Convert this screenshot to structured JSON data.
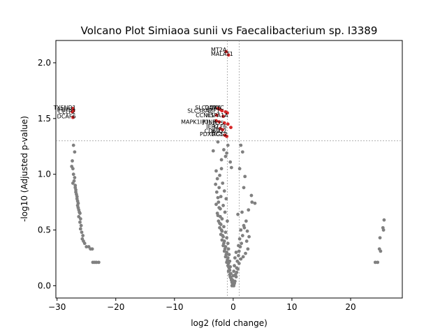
{
  "chart_data": {
    "type": "scatter",
    "title": "Volcano Plot Simiaoa sunii vs Faecalibacterium sp. I3389",
    "xlabel": "log2 (fold change)",
    "ylabel": "-log10 (Adjusted p-value)",
    "xlim": [
      -30.2,
      28.8
    ],
    "ylim": [
      -0.11,
      2.2
    ],
    "xticks": [
      -30,
      -20,
      -10,
      0,
      10,
      20
    ],
    "yticks": [
      0.0,
      0.5,
      1.0,
      1.5,
      2.0
    ],
    "grid": false,
    "threshold_lines": {
      "x": [
        -1,
        1
      ],
      "y": [
        1.3
      ]
    },
    "colors": {
      "significant": "#d62728",
      "not_significant": "#808080",
      "threshold_line": "#808080"
    },
    "significant_points": [
      {
        "gene": "MT2A",
        "x": -1.2,
        "y": 2.1
      },
      {
        "gene": "MALAT1",
        "x": -0.8,
        "y": 2.07
      },
      {
        "gene": "TYSND1",
        "x": -27.3,
        "y": 1.59
      },
      {
        "gene": "PTMS",
        "x": -27.2,
        "y": 1.57
      },
      {
        "gene": "CELF2",
        "x": -27.4,
        "y": 1.56
      },
      {
        "gene": "DCAF6",
        "x": -27.3,
        "y": 1.51
      },
      {
        "gene": "SLC2A1",
        "x": -2.6,
        "y": 1.59
      },
      {
        "gene": "DDX5",
        "x": -2.2,
        "y": 1.58
      },
      {
        "gene": "MYC",
        "x": -1.9,
        "y": 1.57
      },
      {
        "gene": "SLC38A2",
        "x": -1.3,
        "y": 1.56
      },
      {
        "gene": "EIF1",
        "x": -1.0,
        "y": 1.55
      },
      {
        "gene": "CCNL1",
        "x": -2.8,
        "y": 1.53
      },
      {
        "gene": "HSPA1A",
        "x": -1.7,
        "y": 1.52
      },
      {
        "gene": "MAPK1IP1L",
        "x": -2.9,
        "y": 1.48
      },
      {
        "gene": "JUNB",
        "x": -2.4,
        "y": 1.47
      },
      {
        "gene": "FOS",
        "x": -1.5,
        "y": 1.46
      },
      {
        "gene": "IER2",
        "x": -0.9,
        "y": 1.45
      },
      {
        "gene": "KLF6",
        "x": -0.4,
        "y": 1.42
      },
      {
        "gene": "CD69",
        "x": -2.2,
        "y": 1.41
      },
      {
        "gene": "BTG2",
        "x": -1.8,
        "y": 1.4
      },
      {
        "gene": "PDXDC1",
        "x": -1.4,
        "y": 1.35
      },
      {
        "gene": "RGS2",
        "x": -1.1,
        "y": 1.34
      }
    ],
    "labels": [
      {
        "text": "MT2A",
        "x": -3.8,
        "y": 2.12
      },
      {
        "text": "MALAT1",
        "x": -3.8,
        "y": 2.08
      },
      {
        "text": "TYSND1",
        "x": -30.6,
        "y": 1.6
      },
      {
        "text": "PTMS",
        "x": -30.0,
        "y": 1.58
      },
      {
        "text": "CELF2",
        "x": -29.8,
        "y": 1.56
      },
      {
        "text": "DCAF6",
        "x": -30.0,
        "y": 1.52
      },
      {
        "text": "SLC2A1",
        "x": -6.5,
        "y": 1.6
      },
      {
        "text": "DDX5",
        "x": -4.8,
        "y": 1.6
      },
      {
        "text": "MYC",
        "x": -3.6,
        "y": 1.6
      },
      {
        "text": "SLC38A2",
        "x": -7.8,
        "y": 1.57
      },
      {
        "text": "EIF1",
        "x": -4.3,
        "y": 1.57
      },
      {
        "text": "CCNL1",
        "x": -6.4,
        "y": 1.53
      },
      {
        "text": "HSPA1A",
        "x": -4.6,
        "y": 1.53
      },
      {
        "text": "MAPK1IP1L",
        "x": -8.9,
        "y": 1.47
      },
      {
        "text": "JUNB",
        "x": -5.2,
        "y": 1.47
      },
      {
        "text": "FOS",
        "x": -3.5,
        "y": 1.46
      },
      {
        "text": "IER2",
        "x": -4.6,
        "y": 1.43
      },
      {
        "text": "KLF6",
        "x": -3.4,
        "y": 1.43
      },
      {
        "text": "CD69",
        "x": -4.9,
        "y": 1.39
      },
      {
        "text": "BTG2",
        "x": -3.7,
        "y": 1.39
      },
      {
        "text": "PDXDC1",
        "x": -5.7,
        "y": 1.36
      },
      {
        "text": "RGS2",
        "x": -3.6,
        "y": 1.36
      }
    ],
    "nonsignificant_points": [
      [
        -27.2,
        1.26
      ],
      [
        -27.0,
        1.2
      ],
      [
        -27.4,
        1.12
      ],
      [
        -27.5,
        1.07
      ],
      [
        -27.3,
        1.05
      ],
      [
        -27.2,
        1.0
      ],
      [
        -27.0,
        0.97
      ],
      [
        -27.1,
        0.94
      ],
      [
        -27.3,
        0.92
      ],
      [
        -26.9,
        0.9
      ],
      [
        -26.9,
        0.88
      ],
      [
        -26.8,
        0.86
      ],
      [
        -26.8,
        0.84
      ],
      [
        -26.7,
        0.82
      ],
      [
        -26.6,
        0.8
      ],
      [
        -26.6,
        0.78
      ],
      [
        -26.5,
        0.76
      ],
      [
        -26.4,
        0.74
      ],
      [
        -26.5,
        0.72
      ],
      [
        -26.4,
        0.7
      ],
      [
        -26.3,
        0.68
      ],
      [
        -26.2,
        0.66
      ],
      [
        -26.1,
        0.65
      ],
      [
        -26.3,
        0.62
      ],
      [
        -26.0,
        0.6
      ],
      [
        -26.1,
        0.57
      ],
      [
        -25.9,
        0.54
      ],
      [
        -26.0,
        0.51
      ],
      [
        -25.8,
        0.48
      ],
      [
        -25.6,
        0.45
      ],
      [
        -25.7,
        0.42
      ],
      [
        -25.5,
        0.4
      ],
      [
        -25.3,
        0.38
      ],
      [
        -24.6,
        0.35
      ],
      [
        -24.3,
        0.33
      ],
      [
        -24.0,
        0.33
      ],
      [
        -25.0,
        0.35
      ],
      [
        -23.9,
        0.21
      ],
      [
        -23.6,
        0.21
      ],
      [
        -23.3,
        0.21
      ],
      [
        -22.9,
        0.21
      ],
      [
        -3.4,
        1.21
      ],
      [
        -2.6,
        1.29
      ],
      [
        -0.9,
        1.26
      ],
      [
        -1.1,
        1.19
      ],
      [
        -1.6,
        1.22
      ],
      [
        -1.3,
        1.16
      ],
      [
        -2.0,
        1.13
      ],
      [
        -0.5,
        1.11
      ],
      [
        -0.3,
        1.06
      ],
      [
        1.3,
        1.26
      ],
      [
        1.6,
        1.2
      ],
      [
        1.1,
        1.05
      ],
      [
        2.0,
        0.98
      ],
      [
        1.8,
        0.88
      ],
      [
        3.1,
        0.81
      ],
      [
        3.2,
        0.75
      ],
      [
        3.7,
        0.74
      ],
      [
        2.6,
        0.68
      ],
      [
        1.5,
        0.66
      ],
      [
        0.8,
        0.64
      ],
      [
        2.2,
        0.58
      ],
      [
        1.9,
        0.52
      ],
      [
        2.4,
        0.49
      ],
      [
        2.7,
        0.44
      ],
      [
        2.3,
        0.4
      ],
      [
        2.5,
        0.33
      ],
      [
        2.1,
        0.29
      ],
      [
        1.7,
        0.26
      ],
      [
        1.3,
        0.24
      ],
      [
        1.0,
        0.2
      ],
      [
        0.8,
        0.15
      ],
      [
        0.6,
        0.12
      ],
      [
        0.5,
        0.08
      ],
      [
        0.3,
        0.04
      ],
      [
        0.2,
        0.02
      ],
      [
        -2.0,
        1.05
      ],
      [
        -2.3,
        0.99
      ],
      [
        -1.8,
        0.92
      ],
      [
        -2.4,
        0.88
      ],
      [
        -1.5,
        0.85
      ],
      [
        -2.1,
        0.8
      ],
      [
        -1.2,
        0.78
      ],
      [
        -2.5,
        0.75
      ],
      [
        -1.7,
        0.72
      ],
      [
        -2.2,
        0.69
      ],
      [
        -1.4,
        0.66
      ],
      [
        -2.6,
        0.63
      ],
      [
        -1.9,
        0.6
      ],
      [
        -1.0,
        0.58
      ],
      [
        -2.3,
        0.56
      ],
      [
        -1.6,
        0.53
      ],
      [
        -2.0,
        0.5
      ],
      [
        -1.3,
        0.48
      ],
      [
        -1.8,
        0.45
      ],
      [
        -1.1,
        0.43
      ],
      [
        -1.5,
        0.4
      ],
      [
        -0.9,
        0.38
      ],
      [
        -1.3,
        0.35
      ],
      [
        -0.8,
        0.33
      ],
      [
        -1.1,
        0.3
      ],
      [
        -0.7,
        0.28
      ],
      [
        -0.9,
        0.25
      ],
      [
        -0.6,
        0.22
      ],
      [
        -0.8,
        0.2
      ],
      [
        -0.5,
        0.17
      ],
      [
        -0.6,
        0.14
      ],
      [
        -0.4,
        0.11
      ],
      [
        -0.5,
        0.08
      ],
      [
        -0.3,
        0.05
      ],
      [
        -0.2,
        0.03
      ],
      [
        -0.1,
        0.01
      ],
      [
        0.1,
        0.0
      ],
      [
        -0.2,
        0.0
      ],
      [
        -2.9,
        1.03
      ],
      [
        -2.7,
        0.96
      ],
      [
        -3.0,
        0.91
      ],
      [
        -2.8,
        0.84
      ],
      [
        -2.6,
        0.79
      ],
      [
        -2.9,
        0.73
      ],
      [
        -2.4,
        0.7
      ],
      [
        -2.7,
        0.65
      ],
      [
        -2.2,
        0.62
      ],
      [
        -2.5,
        0.58
      ],
      [
        -2.1,
        0.55
      ],
      [
        -2.3,
        0.52
      ],
      [
        -1.9,
        0.49
      ],
      [
        -2.1,
        0.46
      ],
      [
        -1.7,
        0.44
      ],
      [
        -1.9,
        0.41
      ],
      [
        -1.6,
        0.38
      ],
      [
        -1.7,
        0.36
      ],
      [
        -1.4,
        0.33
      ],
      [
        -1.5,
        0.31
      ],
      [
        -1.2,
        0.28
      ],
      [
        -1.3,
        0.26
      ],
      [
        -1.0,
        0.23
      ],
      [
        -1.1,
        0.21
      ],
      [
        -0.9,
        0.18
      ],
      [
        -0.7,
        0.16
      ],
      [
        -0.8,
        0.13
      ],
      [
        -0.6,
        0.1
      ],
      [
        -0.4,
        0.07
      ],
      [
        -0.3,
        0.06
      ],
      [
        0.4,
        0.1
      ],
      [
        0.6,
        0.16
      ],
      [
        0.7,
        0.22
      ],
      [
        0.9,
        0.27
      ],
      [
        1.0,
        0.31
      ],
      [
        1.2,
        0.35
      ],
      [
        1.4,
        0.38
      ],
      [
        1.1,
        0.42
      ],
      [
        1.6,
        0.45
      ],
      [
        1.3,
        0.5
      ],
      [
        1.8,
        0.54
      ],
      [
        0.9,
        0.36
      ],
      [
        0.5,
        0.3
      ],
      [
        0.3,
        0.25
      ],
      [
        0.2,
        0.18
      ],
      [
        0.1,
        0.13
      ],
      [
        0.0,
        0.09
      ],
      [
        -0.1,
        0.05
      ],
      [
        24.2,
        0.21
      ],
      [
        24.6,
        0.21
      ],
      [
        24.9,
        0.33
      ],
      [
        25.1,
        0.31
      ],
      [
        25.0,
        0.43
      ],
      [
        25.5,
        0.52
      ],
      [
        25.6,
        0.5
      ],
      [
        25.7,
        0.59
      ]
    ]
  }
}
